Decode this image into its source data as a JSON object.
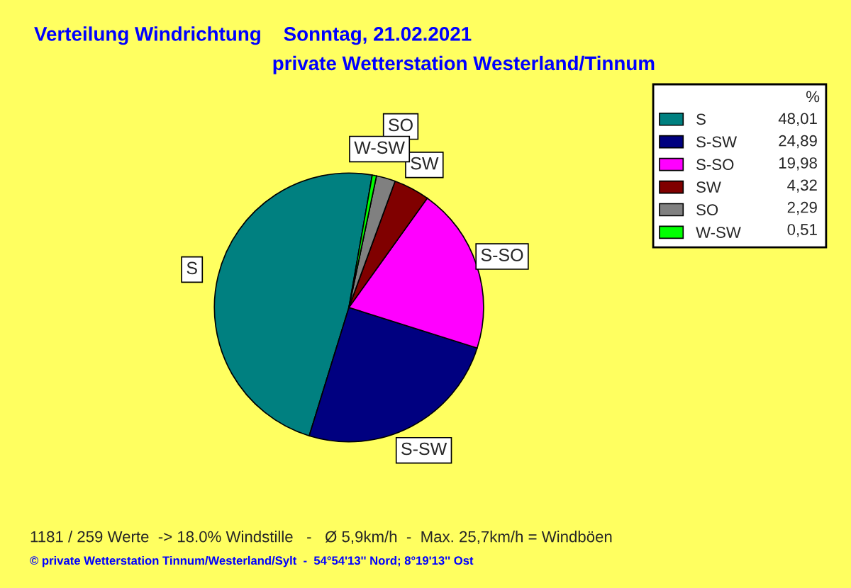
{
  "chart_data": {
    "type": "pie",
    "title": "Verteilung Windrichtung    Sonntag, 21.02.2021",
    "subtitle": "private Wetterstation Westerland/Tinnum",
    "categories": [
      "S",
      "S-SW",
      "S-SO",
      "SW",
      "SO",
      "W-SW"
    ],
    "values": [
      48.01,
      24.89,
      19.98,
      4.32,
      2.29,
      0.51
    ],
    "value_labels": [
      "48,01",
      "24,89",
      "19,98",
      "4,32",
      "2,29",
      "0,51"
    ],
    "colors": [
      "#008080",
      "#000080",
      "#ff00ff",
      "#800000",
      "#808080",
      "#00ff00"
    ],
    "legend": "top right",
    "legend_title": "%",
    "annotations": [
      "1181 / 259 Werte  -> 18.0% Windstille   -   Ø 5,9km/h  -  Max. 25,7km/h = Windböen",
      "© private Wetterstation Tinnum/Westerland/Sylt  -  54°54'13'' Nord; 8°19'13'' Ost"
    ]
  }
}
